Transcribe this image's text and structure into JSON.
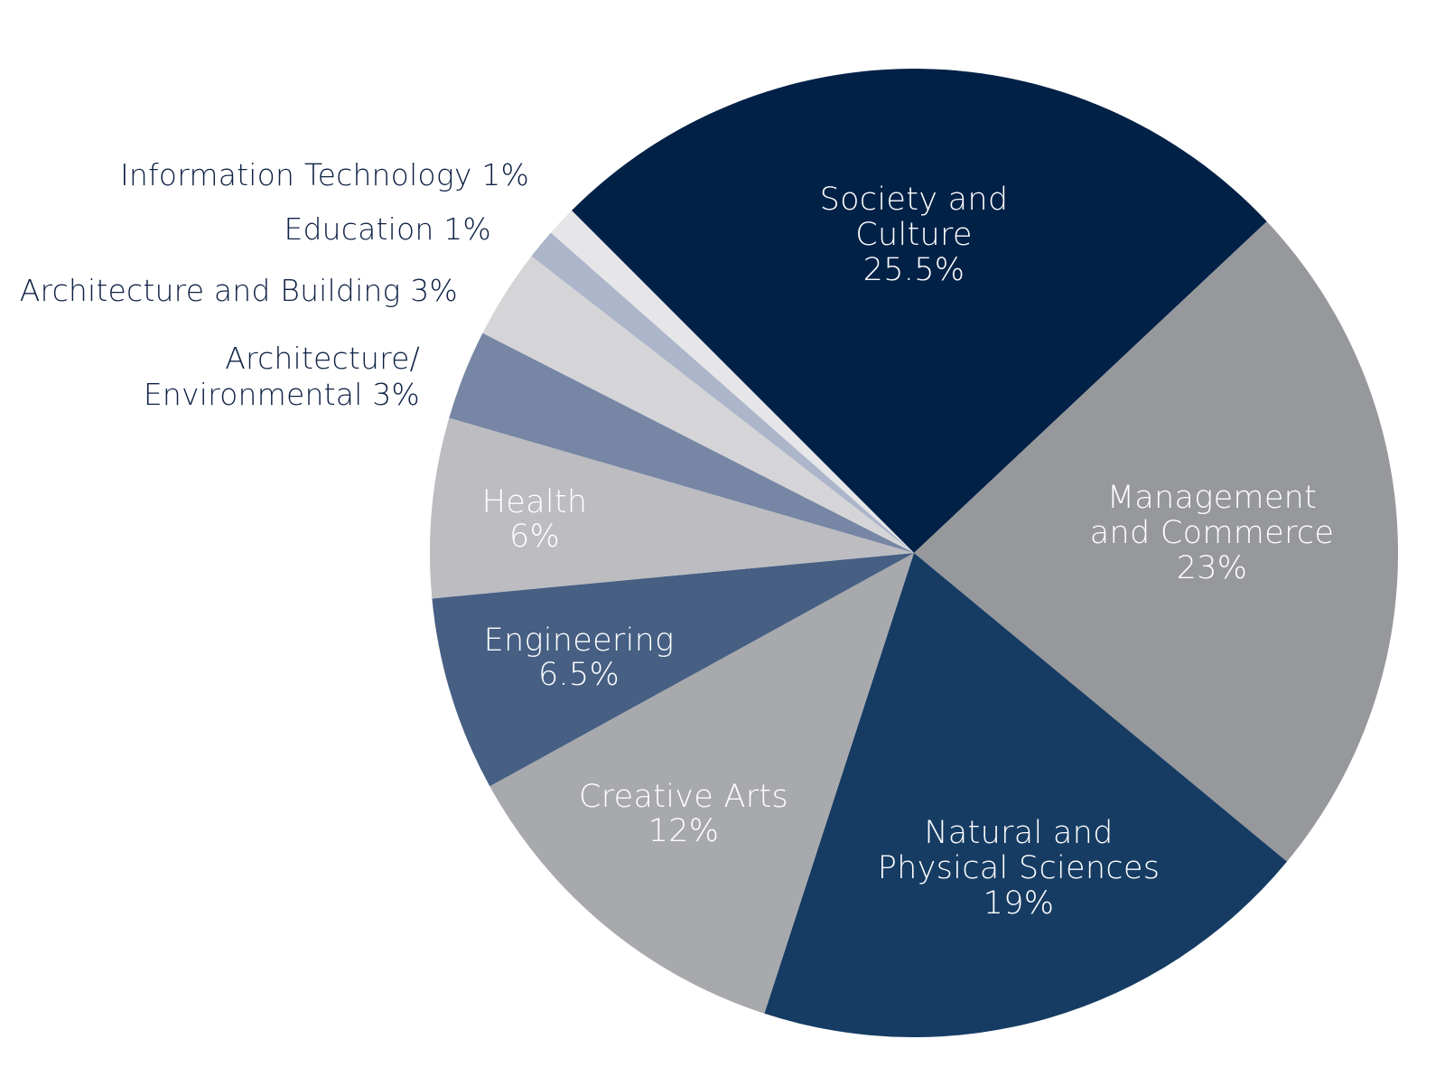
{
  "chart_data": {
    "type": "pie",
    "title": "",
    "start_angle_deg": -45,
    "direction": "clockwise",
    "slices": [
      {
        "name": "Society and Culture",
        "value": 25.5,
        "label_lines": [
          "Society and",
          "Culture",
          "25.5%"
        ],
        "color": "#022147",
        "label_color": "#ffffff",
        "label_position": "inside"
      },
      {
        "name": "Management and Commerce",
        "value": 23,
        "label_lines": [
          "Management",
          "and Commerce",
          "23%"
        ],
        "color": "#97989c",
        "label_color": "#ffffff",
        "label_position": "inside"
      },
      {
        "name": "Natural and Physical Sciences",
        "value": 19,
        "label_lines": [
          "Natural and",
          "Physical Sciences",
          "19%"
        ],
        "color": "#163c63",
        "label_color": "#ffffff",
        "label_position": "inside"
      },
      {
        "name": "Creative Arts",
        "value": 12,
        "label_lines": [
          "Creative Arts",
          "12%"
        ],
        "color": "#a8a9ad",
        "label_color": "#ffffff",
        "label_position": "inside"
      },
      {
        "name": "Engineering",
        "value": 6.5,
        "label_lines": [
          "Engineering",
          "6.5%"
        ],
        "color": "#465f83",
        "label_color": "#ffffff",
        "label_position": "inside"
      },
      {
        "name": "Health",
        "value": 6,
        "label_lines": [
          "Health",
          "6%"
        ],
        "color": "#bcbcc1",
        "label_color": "#ffffff",
        "label_position": "inside"
      },
      {
        "name": "Architecture/ Environmental",
        "value": 3,
        "label_lines": [
          "Architecture/",
          "Environmental  3%"
        ],
        "color": "#7686a4",
        "label_color": "#0e2244",
        "label_position": "outside"
      },
      {
        "name": "Architecture and Building",
        "value": 3,
        "label_lines": [
          "Architecture and Building  3%"
        ],
        "color": "#d5d5d8",
        "label_color": "#0e2244",
        "label_position": "outside"
      },
      {
        "name": "Education",
        "value": 1,
        "label_lines": [
          "Education  1%"
        ],
        "color": "#acb5c9",
        "label_color": "#0e2244",
        "label_position": "outside"
      },
      {
        "name": "Information Technology",
        "value": 1,
        "label_lines": [
          "Information Technology  1%"
        ],
        "color": "#e6e6e8",
        "label_color": "#0e2244",
        "label_position": "outside"
      }
    ]
  }
}
